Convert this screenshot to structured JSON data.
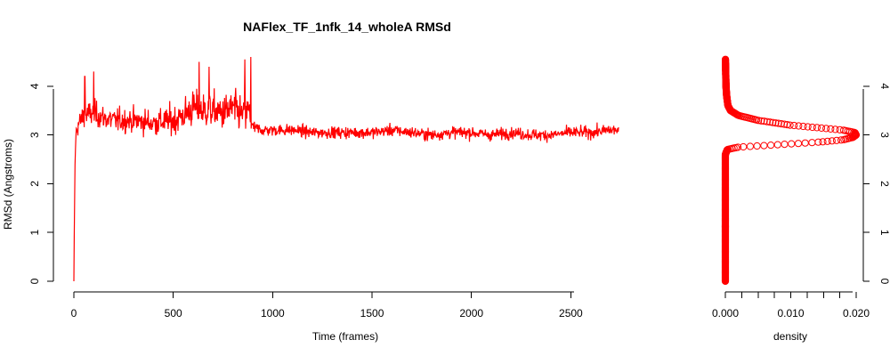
{
  "chart_data": [
    {
      "type": "line",
      "title": "NAFlex_TF_1nfk_14_wholeA RMSd",
      "xlabel": "Time (frames)",
      "ylabel": "RMSd (Angstroms)",
      "xlim": [
        0,
        2740
      ],
      "ylim": [
        0,
        4.6
      ],
      "x_ticks": [
        0,
        500,
        1000,
        1500,
        2000,
        2500
      ],
      "y_ticks": [
        0,
        1,
        2,
        3,
        4
      ],
      "grid": false,
      "series": [
        {
          "color": "#ff0000",
          "x": [
            0,
            5,
            10,
            20,
            50,
            100,
            150,
            200,
            300,
            400,
            500,
            550,
            600,
            650,
            700,
            750,
            800,
            850,
            880,
            900,
            950,
            1000,
            1100,
            1200,
            1300,
            1400,
            1500,
            1600,
            1700,
            1800,
            1900,
            2000,
            2100,
            2200,
            2300,
            2400,
            2500,
            2600,
            2700,
            2740
          ],
          "y": [
            0.0,
            2.2,
            3.0,
            3.2,
            3.4,
            3.45,
            3.35,
            3.3,
            3.3,
            3.25,
            3.3,
            3.4,
            3.55,
            3.5,
            3.5,
            3.45,
            3.55,
            3.4,
            3.5,
            3.15,
            3.1,
            3.1,
            3.1,
            3.05,
            3.05,
            3.05,
            3.05,
            3.1,
            3.05,
            3.0,
            3.05,
            3.05,
            3.0,
            3.05,
            3.0,
            3.0,
            3.05,
            3.05,
            3.1,
            3.1
          ],
          "noise_sd": [
            0.0,
            0.1,
            0.15,
            0.18,
            0.2,
            0.22,
            0.2,
            0.2,
            0.2,
            0.22,
            0.25,
            0.28,
            0.3,
            0.3,
            0.3,
            0.3,
            0.32,
            0.3,
            0.3,
            0.12,
            0.1,
            0.1,
            0.1,
            0.1,
            0.1,
            0.1,
            0.1,
            0.1,
            0.1,
            0.1,
            0.1,
            0.1,
            0.1,
            0.1,
            0.1,
            0.1,
            0.1,
            0.1,
            0.1,
            0.1
          ],
          "peaks": [
            [
              630,
              4.5
            ],
            [
              680,
              4.4
            ],
            [
              860,
              4.55
            ],
            [
              890,
              4.6
            ],
            [
              100,
              4.3
            ],
            [
              55,
              4.2
            ]
          ]
        }
      ]
    },
    {
      "type": "scatter",
      "xlabel": "density",
      "xlim": [
        0,
        0.02
      ],
      "ylim": [
        0,
        4.6
      ],
      "x_ticks": [
        0.0,
        0.01,
        0.02
      ],
      "x_tick_labels": [
        "0.000",
        "0.010",
        "0.020"
      ],
      "y_ticks": [
        0,
        1,
        2,
        3,
        4
      ],
      "grid": false,
      "series": [
        {
          "color": "#ff0000",
          "marker": "open-circle",
          "density_curve": {
            "y": [
              0.0,
              2.6,
              2.7,
              2.75,
              2.8,
              2.85,
              2.9,
              2.95,
              3.0,
              3.05,
              3.1,
              3.15,
              3.2,
              3.3,
              3.4,
              3.5,
              3.6,
              3.8,
              4.0,
              4.3,
              4.6
            ],
            "density": [
              0.0,
              0.0,
              0.0003,
              0.002,
              0.008,
              0.014,
              0.018,
              0.0195,
              0.02,
              0.0198,
              0.018,
              0.014,
              0.01,
              0.005,
              0.002,
              0.0008,
              0.0004,
              0.0002,
              0.0001,
              5e-05,
              0.0
            ]
          }
        }
      ]
    }
  ]
}
